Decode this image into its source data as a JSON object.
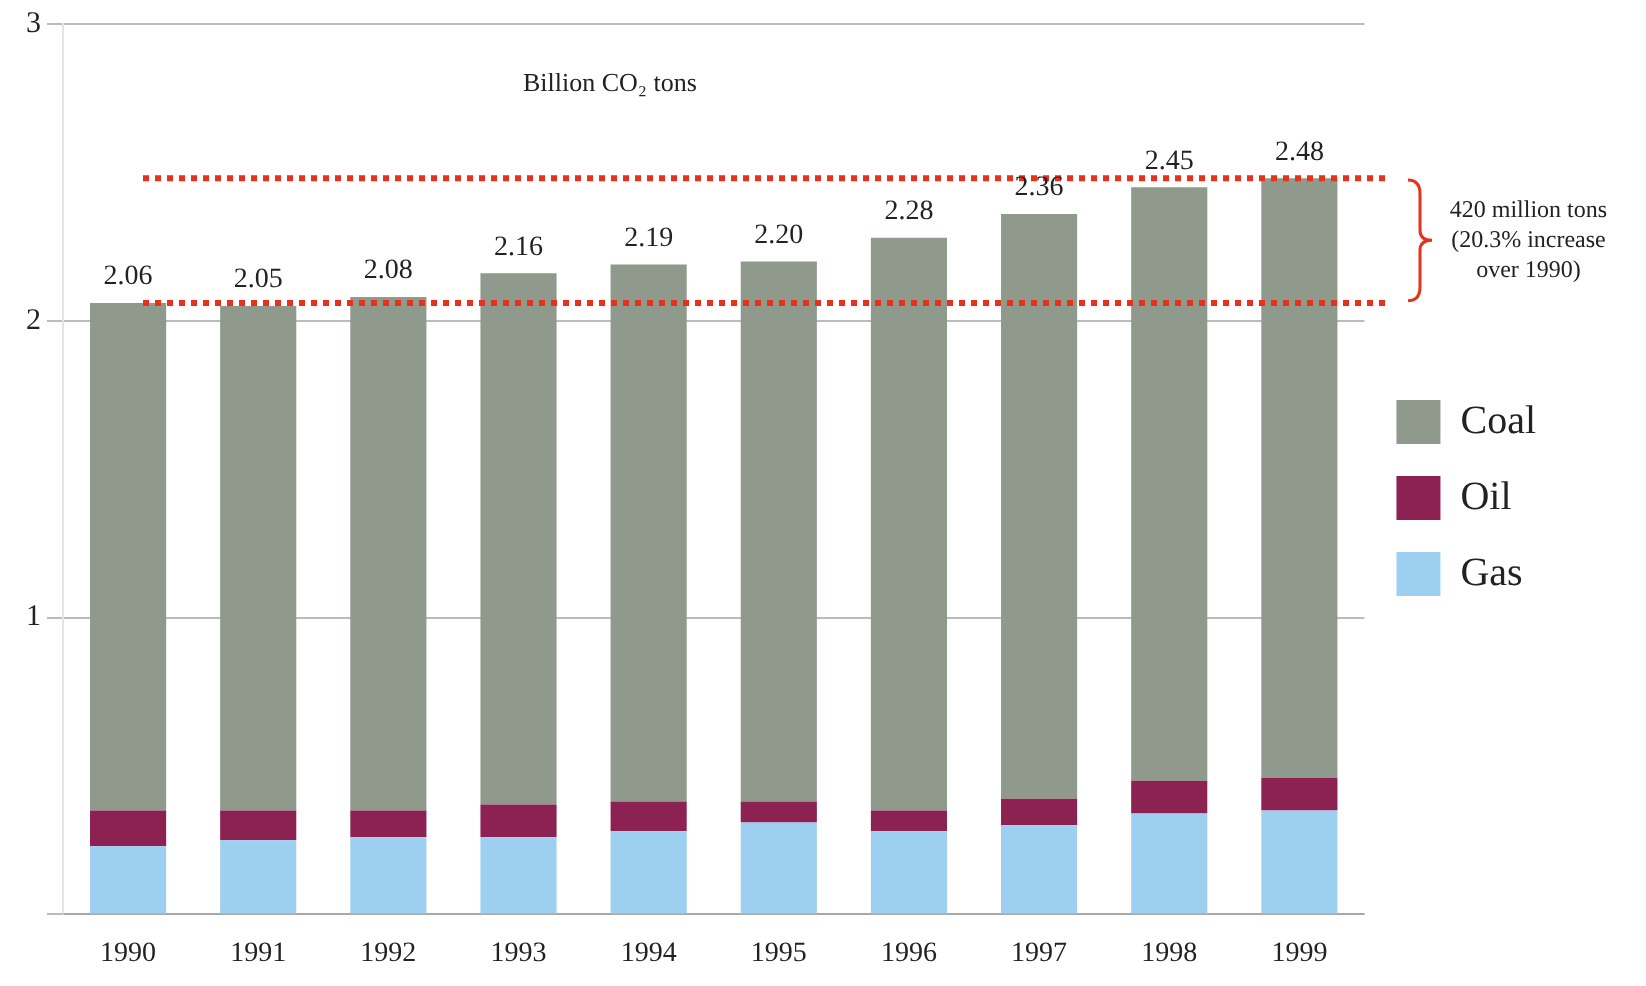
{
  "chart_data": {
    "type": "bar",
    "stacked": true,
    "ylabel": "Billion CO₂ tons",
    "categories": [
      "1990",
      "1991",
      "1992",
      "1993",
      "1994",
      "1995",
      "1996",
      "1997",
      "1998",
      "1999"
    ],
    "series": [
      {
        "name": "Gas",
        "color": "#9dd0f0",
        "values": [
          0.23,
          0.25,
          0.26,
          0.26,
          0.28,
          0.31,
          0.28,
          0.3,
          0.34,
          0.35
        ]
      },
      {
        "name": "Oil",
        "color": "#8b2252",
        "values": [
          0.12,
          0.1,
          0.09,
          0.11,
          0.1,
          0.07,
          0.07,
          0.09,
          0.11,
          0.11
        ]
      },
      {
        "name": "Coal",
        "color": "#8f9a8c",
        "values": [
          1.71,
          1.7,
          1.73,
          1.79,
          1.81,
          1.82,
          1.93,
          1.97,
          2.0,
          2.02
        ]
      }
    ],
    "totals": [
      "2.06",
      "2.05",
      "2.08",
      "2.16",
      "2.19",
      "2.20",
      "2.28",
      "2.36",
      "2.45",
      "2.48"
    ],
    "ylim": [
      0,
      3
    ],
    "yticks": [
      {
        "value": 0,
        "label": null
      },
      1,
      2,
      3
    ],
    "grid": "y",
    "legend": "right",
    "ref_lines": [
      {
        "axis": "y",
        "value": 2.06,
        "label": null,
        "color": "#e8311b",
        "line_style": "dotted"
      },
      {
        "axis": "y",
        "value": 2.48,
        "label": null,
        "color": "#e8311b",
        "line_style": "dotted"
      }
    ],
    "annotations": [
      "420 million tons\n(20.3% increase\nover 1990)"
    ]
  }
}
